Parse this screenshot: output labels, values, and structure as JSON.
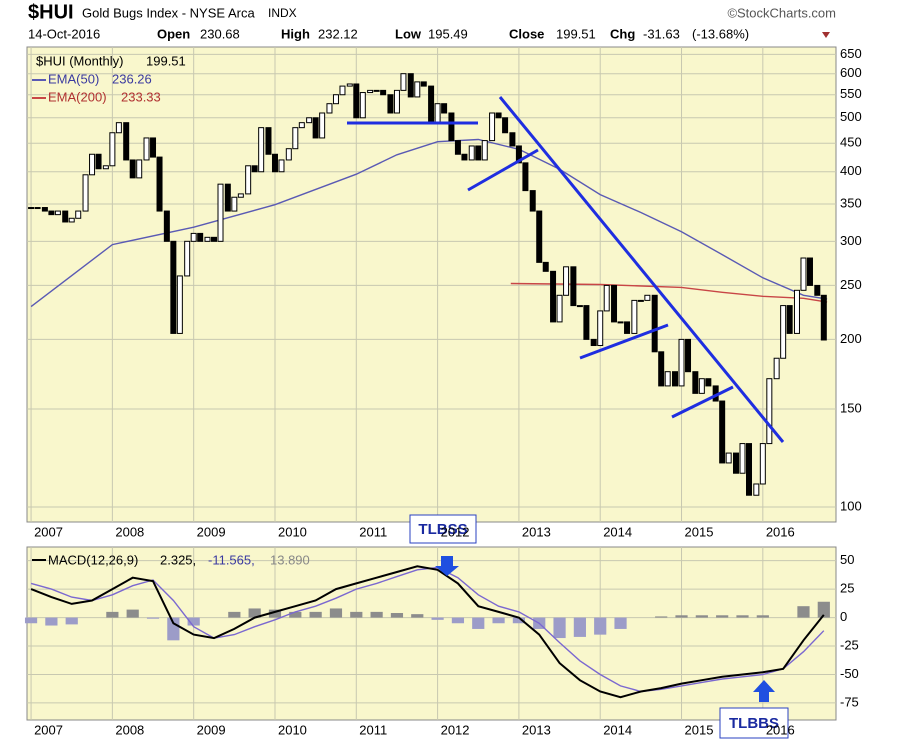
{
  "header": {
    "symbol": "$HUI",
    "name": "Gold Bugs Index - NYSE Arca",
    "exchange": "INDX",
    "copyright": "©StockCharts.com",
    "date": "14-Oct-2016",
    "open_label": "Open",
    "open": 230.68,
    "high_label": "High",
    "high": 232.12,
    "low_label": "Low",
    "low": 195.49,
    "close_label": "Close",
    "close": 199.51,
    "chg_label": "Chg",
    "chg": -31.63,
    "chg_pct": "(-13.68%)"
  },
  "annotations": [
    "TLBSS",
    "TLBBS"
  ],
  "chart_data": [
    {
      "type": "candlestick",
      "legend_label": "$HUI (Monthly)",
      "up_color": "#ffffff",
      "down_color": "#000000",
      "log_scale": true,
      "grid": true,
      "xlim": [
        2006.95,
        2016.9
      ],
      "xticks": [
        2007,
        2008,
        2009,
        2010,
        2011,
        2012,
        2013,
        2014,
        2015,
        2016
      ],
      "ylim": [
        94,
        670
      ],
      "yticks": [
        100,
        150,
        200,
        250,
        300,
        350,
        400,
        450,
        500,
        550,
        600,
        650
      ],
      "x": [
        2007,
        2007.08,
        2007.17,
        2007.25,
        2007.33,
        2007.42,
        2007.5,
        2007.58,
        2007.67,
        2007.75,
        2007.83,
        2007.92,
        2008,
        2008.08,
        2008.17,
        2008.25,
        2008.33,
        2008.42,
        2008.5,
        2008.58,
        2008.67,
        2008.75,
        2008.83,
        2008.92,
        2009,
        2009.08,
        2009.17,
        2009.25,
        2009.33,
        2009.42,
        2009.5,
        2009.58,
        2009.67,
        2009.75,
        2009.83,
        2009.92,
        2010,
        2010.08,
        2010.17,
        2010.25,
        2010.33,
        2010.42,
        2010.5,
        2010.58,
        2010.67,
        2010.75,
        2010.83,
        2010.92,
        2011,
        2011.08,
        2011.17,
        2011.25,
        2011.33,
        2011.42,
        2011.5,
        2011.58,
        2011.67,
        2011.75,
        2011.83,
        2011.92,
        2012,
        2012.08,
        2012.17,
        2012.25,
        2012.33,
        2012.42,
        2012.5,
        2012.58,
        2012.67,
        2012.75,
        2012.83,
        2012.92,
        2013,
        2013.08,
        2013.17,
        2013.25,
        2013.33,
        2013.42,
        2013.5,
        2013.58,
        2013.67,
        2013.75,
        2013.83,
        2013.92,
        2014,
        2014.08,
        2014.17,
        2014.25,
        2014.33,
        2014.42,
        2014.5,
        2014.58,
        2014.67,
        2014.75,
        2014.83,
        2014.92,
        2015,
        2015.08,
        2015.17,
        2015.25,
        2015.33,
        2015.42,
        2015.5,
        2015.58,
        2015.67,
        2015.75,
        2015.83,
        2015.92,
        2016,
        2016.08,
        2016.17,
        2016.25,
        2016.33,
        2016.42,
        2016.5,
        2016.58,
        2016.67,
        2016.75
      ],
      "values": [
        345,
        345,
        340,
        335,
        340,
        325,
        330,
        340,
        395,
        430,
        405,
        410,
        470,
        490,
        420,
        390,
        420,
        460,
        425,
        340,
        300,
        205,
        260,
        300,
        310,
        300,
        305,
        300,
        380,
        340,
        360,
        365,
        410,
        400,
        480,
        430,
        400,
        420,
        440,
        480,
        490,
        500,
        460,
        510,
        530,
        550,
        570,
        575,
        500,
        555,
        560,
        560,
        550,
        510,
        560,
        600,
        545,
        580,
        570,
        490,
        530,
        510,
        455,
        430,
        420,
        445,
        420,
        455,
        510,
        500,
        470,
        445,
        415,
        370,
        340,
        275,
        265,
        215,
        240,
        270,
        230,
        230,
        200,
        195,
        225,
        250,
        215,
        215,
        205,
        235,
        235,
        240,
        190,
        165,
        175,
        165,
        200,
        175,
        160,
        170,
        165,
        155,
        120,
        125,
        115,
        130,
        105,
        110,
        130,
        170,
        185,
        230,
        205,
        245,
        280,
        250,
        240,
        199.51
      ],
      "series": [
        {
          "name": "EMA(50)",
          "color": "#5a5ab4",
          "x": [
            2007,
            2008,
            2009,
            2010,
            2011,
            2011.5,
            2012,
            2012.5,
            2013,
            2013.5,
            2014,
            2014.5,
            2015,
            2015.5,
            2016,
            2016.5,
            2016.79
          ],
          "values": [
            229,
            296,
            318,
            349,
            396,
            429,
            453,
            457,
            439,
            404,
            364,
            338,
            312,
            284,
            258,
            240,
            236.26
          ]
        },
        {
          "name": "EMA(200)",
          "color": "#c84646",
          "x": [
            2012.9,
            2014,
            2015,
            2015.5,
            2016,
            2016.5,
            2016.79
          ],
          "values": [
            252,
            251,
            248,
            243,
            239,
            237,
            233.33
          ]
        }
      ]
    },
    {
      "type": "macd",
      "legend_title": "MACD(12,26,9)",
      "legend_values": [
        "2.325,",
        "-11.565,",
        "13.890"
      ],
      "grid": true,
      "xlim": [
        2006.95,
        2016.9
      ],
      "xticks": [
        2007,
        2008,
        2009,
        2010,
        2011,
        2012,
        2013,
        2014,
        2015,
        2016
      ],
      "ylim": [
        -90,
        62
      ],
      "yticks": [
        50,
        25,
        0,
        -25,
        -50,
        -75
      ],
      "x": [
        2007,
        2007.25,
        2007.5,
        2007.75,
        2008,
        2008.25,
        2008.5,
        2008.75,
        2009,
        2009.25,
        2009.5,
        2009.75,
        2010,
        2010.25,
        2010.5,
        2010.75,
        2011,
        2011.25,
        2011.5,
        2011.75,
        2012,
        2012.25,
        2012.5,
        2012.75,
        2013,
        2013.25,
        2013.5,
        2013.75,
        2014,
        2014.25,
        2014.5,
        2014.75,
        2015,
        2015.25,
        2015.5,
        2015.75,
        2016,
        2016.25,
        2016.5,
        2016.75
      ],
      "macd": {
        "color": "#000000",
        "values": [
          25,
          18,
          12,
          15,
          25,
          35,
          32,
          -5,
          -15,
          -18,
          -10,
          0,
          5,
          10,
          15,
          25,
          30,
          35,
          40,
          45,
          42,
          30,
          10,
          5,
          0,
          -15,
          -40,
          -55,
          -65,
          -70,
          -65,
          -62,
          -58,
          -55,
          -52,
          -50,
          -48,
          -45,
          -20,
          2.325
        ]
      },
      "signal": {
        "color": "#7b68d0",
        "values": [
          30,
          25,
          18,
          15,
          20,
          28,
          33,
          15,
          -8,
          -18,
          -15,
          -8,
          -2,
          5,
          10,
          17,
          25,
          30,
          36,
          42,
          44,
          35,
          20,
          10,
          5,
          -5,
          -22,
          -38,
          -50,
          -60,
          -65,
          -63,
          -60,
          -57,
          -54,
          -52,
          -50,
          -45,
          -30,
          -11.565
        ]
      },
      "histogram": {
        "color": "#8c8c8c",
        "negative_color": "#9c9cc8",
        "values": [
          -5,
          -7,
          -6,
          0,
          5,
          7,
          -1,
          -20,
          -7,
          0,
          5,
          8,
          7,
          5,
          5,
          8,
          5,
          5,
          4,
          3,
          -2,
          -5,
          -10,
          -5,
          -5,
          -10,
          -18,
          -17,
          -15,
          -10,
          0,
          1,
          2,
          2,
          2,
          2,
          2,
          0,
          10,
          13.89
        ]
      }
    }
  ]
}
